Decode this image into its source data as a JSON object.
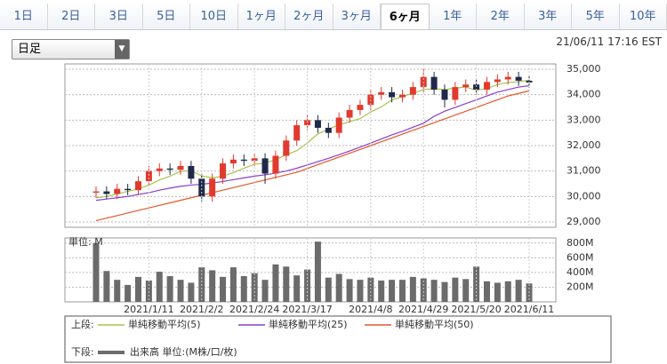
{
  "tabs": [
    "1日",
    "2日",
    "3日",
    "5日",
    "10日",
    "1ヶ月",
    "2ヶ月",
    "3ヶ月",
    "6ヶ月",
    "1年",
    "2年",
    "3年",
    "5年",
    "10年"
  ],
  "active_tab": 8,
  "dropdown": "日足",
  "timestamp": "21/06/11 17:16 EST",
  "legend": {
    "upper": "上段:",
    "lower": "下段:"
  },
  "chart_data": [
    {
      "type": "candlestick",
      "up_color": "#e03a2e",
      "down_color": "#1f2a4a",
      "grid": true,
      "ylim": [
        28790,
        35210
      ],
      "yticks": [
        {
          "value": 29000,
          "label": "29,000"
        },
        {
          "value": 30000,
          "label": "30,000"
        },
        {
          "value": 31000,
          "label": "31,000"
        },
        {
          "value": 32000,
          "label": "32,000"
        },
        {
          "value": 33000,
          "label": "33,000"
        },
        {
          "value": 34000,
          "label": "34,000"
        },
        {
          "value": 35000,
          "label": "35,000"
        }
      ],
      "open": [
        30150,
        30200,
        30100,
        30300,
        30250,
        30600,
        31000,
        31100,
        31050,
        31200,
        30700,
        30000,
        30700,
        31300,
        31450,
        31400,
        31500,
        30900,
        31600,
        32200,
        32800,
        33000,
        32700,
        32500,
        33100,
        33400,
        33600,
        34000,
        34100,
        33900,
        34000,
        34300,
        34700,
        34200,
        33800,
        34300,
        34400,
        34200,
        34500,
        34600,
        34700,
        34550
      ],
      "high": [
        30400,
        30400,
        30500,
        30500,
        30800,
        31200,
        31300,
        31300,
        31400,
        31400,
        30900,
        30900,
        31500,
        31650,
        31650,
        31700,
        31700,
        31800,
        32400,
        33000,
        33200,
        33200,
        32900,
        33300,
        33600,
        33800,
        34200,
        34300,
        34300,
        34200,
        34500,
        35000,
        34900,
        34400,
        34500,
        34600,
        34600,
        34700,
        34800,
        34900,
        34900,
        34750
      ],
      "low": [
        29950,
        29900,
        29900,
        30050,
        30050,
        30400,
        30800,
        30850,
        30850,
        30500,
        29800,
        29800,
        30500,
        31100,
        31200,
        31200,
        30500,
        30700,
        31400,
        32000,
        32600,
        32500,
        32300,
        32300,
        32900,
        33200,
        33400,
        33800,
        33700,
        33700,
        33800,
        34100,
        34000,
        33500,
        33600,
        34100,
        34000,
        34000,
        34300,
        34400,
        34350,
        34280
      ],
      "close": [
        30200,
        30100,
        30300,
        30250,
        30600,
        31000,
        31100,
        31050,
        31200,
        30700,
        30000,
        30700,
        31300,
        31450,
        31400,
        31500,
        30900,
        31600,
        32200,
        32800,
        33000,
        32700,
        32500,
        33100,
        33400,
        33600,
        34000,
        34100,
        33900,
        34000,
        34300,
        34700,
        34200,
        33800,
        34300,
        34400,
        34200,
        34500,
        34600,
        34700,
        34550,
        34480
      ],
      "series": [
        {
          "name": "単純移動平均(5)",
          "color": "#a8c44a",
          "values": [
            29950,
            30000,
            30100,
            30200,
            30300,
            30450,
            30650,
            30800,
            30990,
            31010,
            30810,
            30730,
            30800,
            30940,
            31110,
            31270,
            31310,
            31450,
            31640,
            31800,
            32100,
            32460,
            32640,
            32820,
            32940,
            33060,
            33320,
            33520,
            33800,
            33920,
            34060,
            34200,
            34240,
            34200,
            34260,
            34300,
            34180,
            34240,
            34400,
            34480,
            34510,
            34570
          ]
        },
        {
          "name": "単純移動平均(25)",
          "color": "#8a3fc8",
          "values": [
            29850,
            29900,
            29950,
            30000,
            30080,
            30150,
            30250,
            30330,
            30400,
            30450,
            30480,
            30530,
            30590,
            30660,
            30730,
            30800,
            30850,
            30920,
            31000,
            31110,
            31240,
            31370,
            31500,
            31640,
            31790,
            31940,
            32100,
            32260,
            32420,
            32560,
            32720,
            32880,
            33150,
            33350,
            33500,
            33650,
            33800,
            33950,
            34100,
            34200,
            34300,
            34350
          ]
        },
        {
          "name": "単純移動平均(50)",
          "color": "#e4572a",
          "values": [
            29050,
            29150,
            29250,
            29350,
            29450,
            29550,
            29650,
            29750,
            29850,
            29950,
            30050,
            30150,
            30250,
            30350,
            30450,
            30550,
            30650,
            30750,
            30850,
            30950,
            31100,
            31250,
            31400,
            31550,
            31700,
            31850,
            32000,
            32150,
            32300,
            32450,
            32600,
            32750,
            32900,
            33050,
            33200,
            33350,
            33500,
            33650,
            33800,
            33950,
            34050,
            34150
          ]
        }
      ]
    },
    {
      "type": "bar",
      "ylabel": "単位: M",
      "grid": true,
      "ylim": [
        0,
        870
      ],
      "yticks": [
        {
          "value": 200,
          "label": "200M"
        },
        {
          "value": 400,
          "label": "400M"
        },
        {
          "value": 600,
          "label": "600M"
        },
        {
          "value": 800,
          "label": "800M"
        }
      ],
      "categories": [
        null,
        null,
        null,
        null,
        null,
        "2021/1/11",
        null,
        null,
        null,
        null,
        "2021/2/2",
        null,
        null,
        null,
        null,
        "2021/2/24",
        null,
        null,
        null,
        null,
        "2021/3/17",
        null,
        null,
        null,
        null,
        null,
        "2021/4/8",
        null,
        null,
        null,
        null,
        "2021/4/29",
        null,
        null,
        null,
        null,
        "2021/5/20",
        null,
        null,
        null,
        null,
        "2021/6/11"
      ],
      "series": [
        {
          "name": "出来高 単位:(M株/口/枚)",
          "color": "#6b6b6b",
          "values": [
            800,
            420,
            300,
            230,
            340,
            290,
            410,
            350,
            300,
            260,
            470,
            430,
            340,
            470,
            350,
            390,
            300,
            510,
            480,
            360,
            440,
            820,
            330,
            380,
            310,
            300,
            330,
            290,
            300,
            300,
            340,
            320,
            300,
            270,
            330,
            310,
            480,
            280,
            260,
            280,
            300,
            250
          ]
        }
      ]
    }
  ]
}
